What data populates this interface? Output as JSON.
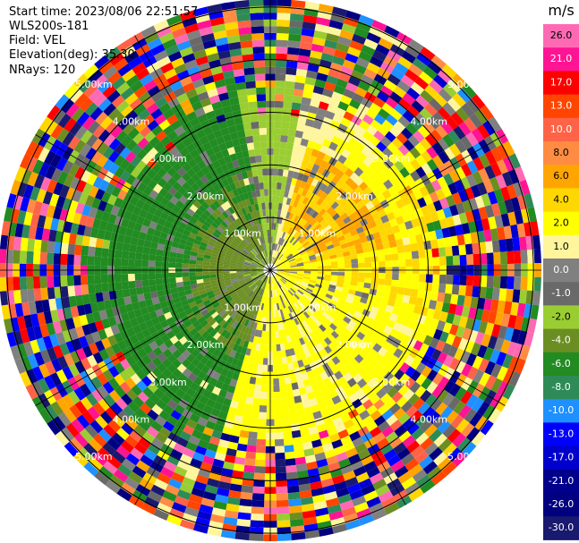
{
  "info": {
    "start_time": "Start time: 2023/08/06 22:51:57",
    "site": "WLS200s-181",
    "field": "Field: VEL",
    "elevation": "Elevation(deg): 35.30",
    "nrays": "NRays: 120"
  },
  "chart_data": {
    "type": "heatmap",
    "projection": "polar-ppi",
    "nrays": 120,
    "range_rings_km": [
      1.0,
      2.0,
      3.0,
      4.0,
      5.0
    ],
    "ring_label_texts": [
      "1.00km",
      "2.00km",
      "3.00km",
      "4.00km",
      "5.00km"
    ],
    "max_range_km": 5.0,
    "colorbar": {
      "unit": "m/s",
      "ticks": [
        "26.0",
        "21.0",
        "17.0",
        "13.0",
        "10.0",
        "8.0",
        "6.0",
        "4.0",
        "2.0",
        "1.0",
        "0.0",
        "-1.0",
        "-2.0",
        "-4.0",
        "-6.0",
        "-8.0",
        "-10.0",
        "-13.0",
        "-17.0",
        "-21.0",
        "-26.0",
        "-30.0"
      ],
      "colors": [
        "#ff69b4",
        "#ff1493",
        "#ff0000",
        "#ff4500",
        "#ff6347",
        "#ff8c42",
        "#ffa500",
        "#ffd700",
        "#ffff00",
        "#fff59d",
        "#808080",
        "#696969",
        "#9acd32",
        "#6b8e23",
        "#228b22",
        "#2e8b57",
        "#1e90ff",
        "#0000ff",
        "#0000cd",
        "#00008b",
        "#000080",
        "#191970"
      ]
    },
    "velocity_pattern": {
      "west_sector_ms": -6.0,
      "north_sector_ms": -2.0,
      "east_sector_ms": 2.0,
      "northeast_core_ms": 6.0,
      "south_sector_ms": 2.0
    }
  }
}
